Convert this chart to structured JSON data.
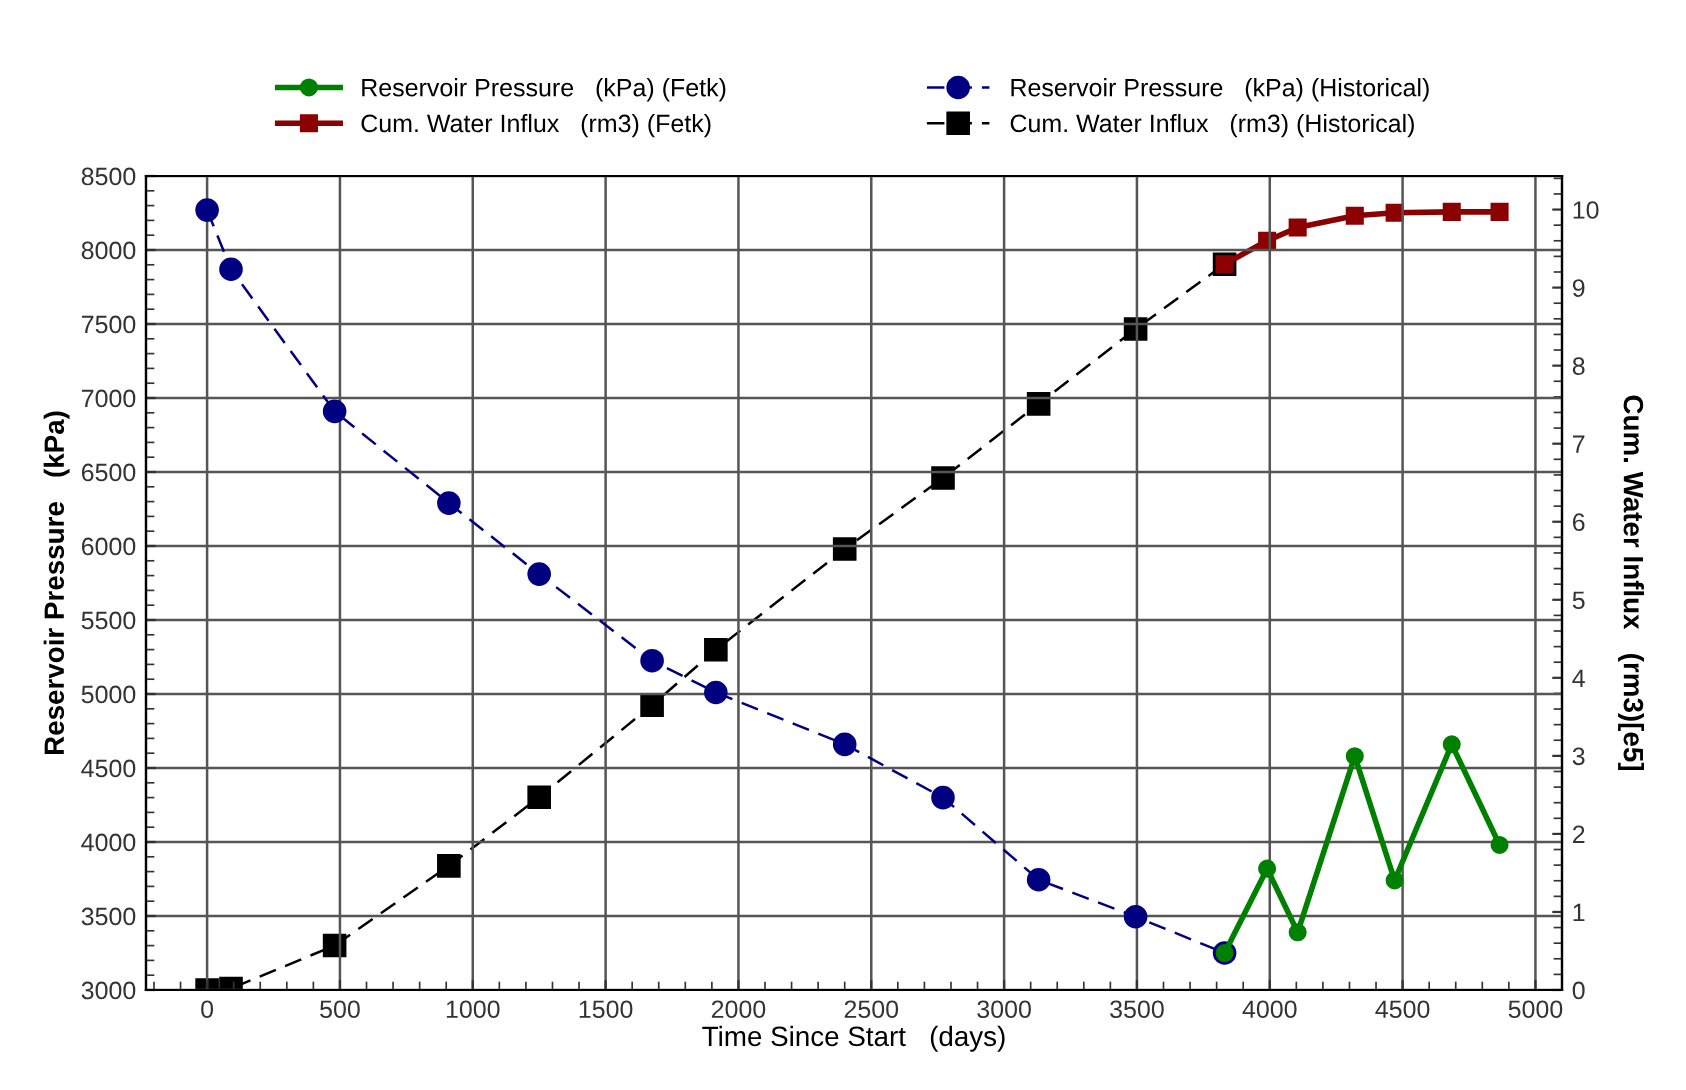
{
  "chart_data": {
    "type": "line",
    "xlabel": "Time Since Start   (days)",
    "ylabel": "Reservoir Pressure   (kPa)",
    "y2label": "Cum. Water Influx   (rm3)[e5]",
    "xlim": [
      -230,
      5100
    ],
    "xticks": [
      0,
      500,
      1000,
      1500,
      2000,
      2500,
      3000,
      3500,
      4000,
      4500,
      5000
    ],
    "ylim": [
      3000,
      8500
    ],
    "yticks": [
      3000,
      3500,
      4000,
      4500,
      5000,
      5500,
      6000,
      6500,
      7000,
      7500,
      8000,
      8500
    ],
    "y2lim": [
      0,
      10.43
    ],
    "y2ticks": [
      0,
      1,
      2,
      3,
      4,
      5,
      6,
      7,
      8,
      9,
      10
    ],
    "grid": true,
    "legend": "top",
    "series": [
      {
        "name": "Reservoir Pressure   (kPa) (Fetk)",
        "color": "#008000",
        "marker": "circle",
        "line_style": "solid",
        "x": [
          3830,
          3990,
          4105,
          4320,
          4470,
          4685,
          4865
        ],
        "values": [
          3250,
          3820,
          3390,
          4580,
          3740,
          4660,
          3980
        ]
      },
      {
        "name": "Cum. Water Influx   (rm3) (Fetk)",
        "color": "#8b0000",
        "marker": "square",
        "line_style": "solid",
        "axis": "y2",
        "x": [
          3830,
          3990,
          4105,
          4320,
          4470,
          4685,
          4865
        ],
        "values": [
          9.3,
          9.6,
          9.77,
          9.92,
          9.96,
          9.97,
          9.97
        ]
      },
      {
        "name": "Reservoir Pressure   (kPa) (Historical)",
        "color": "#000080",
        "marker": "circle",
        "line_style": "dashed",
        "x": [
          0,
          90,
          480,
          910,
          1250,
          1675,
          1915,
          2400,
          2770,
          3130,
          3495,
          3830
        ],
        "values": [
          8270,
          7870,
          6910,
          6290,
          5810,
          5225,
          5010,
          4660,
          4300,
          3745,
          3495,
          3250
        ]
      },
      {
        "name": "Cum. Water Influx   (rm3) (Historical)",
        "color": "#000000",
        "marker": "square",
        "line_style": "dashed",
        "axis": "y2",
        "x": [
          0,
          90,
          480,
          910,
          1250,
          1675,
          1915,
          2400,
          2770,
          3130,
          3495,
          3830
        ],
        "values": [
          0,
          0.02,
          0.57,
          1.59,
          2.47,
          3.65,
          4.36,
          5.65,
          6.56,
          7.51,
          8.47,
          9.3
        ]
      }
    ]
  }
}
